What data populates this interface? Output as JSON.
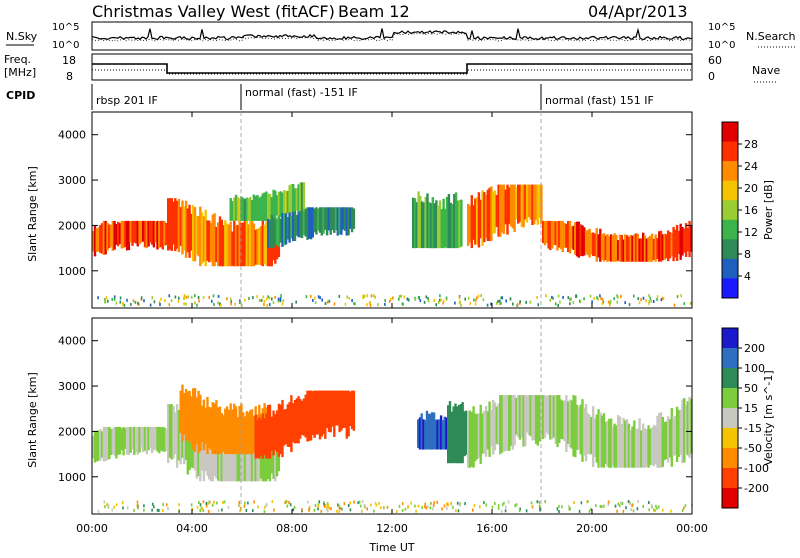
{
  "header": {
    "title": "Christmas Valley West (fitACF)",
    "beam": "Beam 12",
    "date": "04/Apr/2013"
  },
  "strips": {
    "nsky_label": "N.Sky",
    "nsearch_label": "N.Search",
    "nsky_ticks": [
      "10^5",
      "10^0"
    ],
    "freq_label_line1": "Freq.",
    "freq_label_line2": "[MHz]",
    "freq_ticks": [
      "18",
      "8"
    ],
    "nave_label": "Nave",
    "nave_ticks": [
      "60",
      "0"
    ],
    "cpid_label": "CPID"
  },
  "cpid": [
    {
      "name": "rbsp 201 IF",
      "start_hour": 0
    },
    {
      "name": "normal (fast) -151 IF",
      "start_hour": 6
    },
    {
      "name": "normal (fast) 151 IF",
      "start_hour": 18
    }
  ],
  "frequency_trace": [
    {
      "start_hour": 0,
      "end_hour": 3.0,
      "mhz": 15
    },
    {
      "start_hour": 3.0,
      "end_hour": 15.0,
      "mhz": 10.5
    },
    {
      "start_hour": 15.0,
      "end_hour": 24,
      "mhz": 15
    }
  ],
  "x_axis": {
    "label": "Time UT",
    "ticks": [
      "00:00",
      "04:00",
      "08:00",
      "12:00",
      "16:00",
      "20:00",
      "00:00"
    ],
    "range_hours": [
      0,
      24
    ]
  },
  "chart_data": [
    {
      "type": "heatmap",
      "quantity": "Power",
      "ylabel": "Slant Range [km]",
      "yticks": [
        "1000",
        "2000",
        "3000",
        "4000"
      ],
      "ylim": [
        180,
        4500
      ],
      "xlim": [
        0,
        24
      ],
      "colorbar_label": "Power [dB]",
      "colorbar_ticks": [
        "4",
        "8",
        "12",
        "16",
        "20",
        "24",
        "28"
      ],
      "colorbar_range": [
        0,
        32
      ],
      "colors": [
        "#1a1aff",
        "#1f5fbf",
        "#2e8b57",
        "#3cb44b",
        "#9acd32",
        "#f5c400",
        "#ff8c00",
        "#ff3000",
        "#e00000"
      ],
      "echo_regions": [
        {
          "t0": 0.0,
          "t1": 3.0,
          "r0": 1200,
          "r1": 2100,
          "value": 26
        },
        {
          "t0": 3.0,
          "t1": 7.5,
          "r0": 1100,
          "r1": 2600,
          "value": 24
        },
        {
          "t0": 5.5,
          "t1": 8.5,
          "r0": 2100,
          "r1": 2950,
          "value": 14
        },
        {
          "t0": 7.0,
          "t1": 10.5,
          "r0": 1500,
          "r1": 2400,
          "value": 8
        },
        {
          "t0": 12.8,
          "t1": 14.8,
          "r0": 1500,
          "r1": 3200,
          "value": 12
        },
        {
          "t0": 15.0,
          "t1": 18.0,
          "r0": 1500,
          "r1": 2900,
          "value": 24
        },
        {
          "t0": 18.0,
          "t1": 24.0,
          "r0": 1200,
          "r1": 2100,
          "value": 26
        }
      ]
    },
    {
      "type": "heatmap",
      "quantity": "Velocity",
      "ylabel": "Slant Range [km]",
      "yticks": [
        "1000",
        "2000",
        "3000",
        "4000"
      ],
      "ylim": [
        180,
        4500
      ],
      "xlim": [
        0,
        24
      ],
      "colorbar_label": "Velocity [m s^-1]",
      "colorbar_ticks": [
        "200",
        "100",
        "50",
        "15",
        "-15",
        "-50",
        "-100",
        "-200"
      ],
      "colors": [
        "#1a1acc",
        "#2e6fbf",
        "#2e8b57",
        "#7ccd3c",
        "#c8c8c0",
        "#f5c400",
        "#ff8c00",
        "#ff4000",
        "#e00000"
      ],
      "echo_regions": [
        {
          "t0": 0.0,
          "t1": 3.0,
          "r0": 1200,
          "r1": 2100,
          "value": 0
        },
        {
          "t0": 3.0,
          "t1": 7.5,
          "r0": 900,
          "r1": 2600,
          "value": 0
        },
        {
          "t0": 3.5,
          "t1": 7.0,
          "r0": 1500,
          "r1": 3100,
          "value": -50
        },
        {
          "t0": 6.5,
          "t1": 10.5,
          "r0": 1400,
          "r1": 2900,
          "value": -100
        },
        {
          "t0": 13.0,
          "t1": 14.2,
          "r0": 1600,
          "r1": 2800,
          "value": 150
        },
        {
          "t0": 14.2,
          "t1": 15.0,
          "r0": 1300,
          "r1": 3200,
          "value": 40
        },
        {
          "t0": 15.0,
          "t1": 24.0,
          "r0": 1200,
          "r1": 2800,
          "value": 0
        }
      ]
    }
  ]
}
